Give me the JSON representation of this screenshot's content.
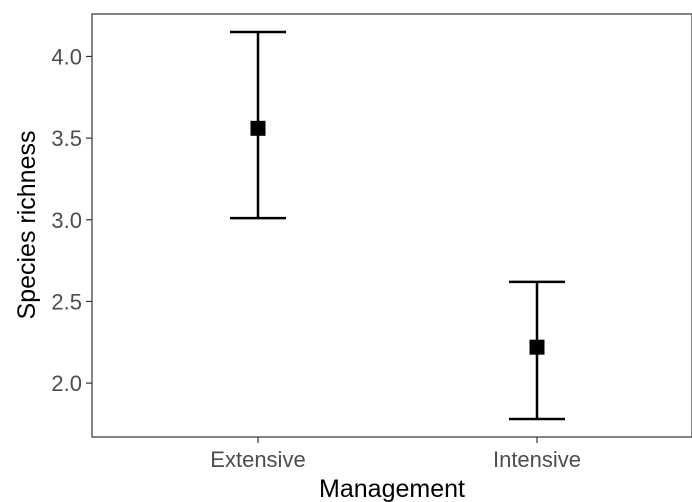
{
  "chart_data": {
    "type": "scatter",
    "xlabel": "Management",
    "ylabel": "Species richness",
    "categories": [
      "Extensive",
      "Intensive"
    ],
    "series": [
      {
        "points": [
          {
            "x": "Extensive",
            "y": 3.56,
            "lower": 3.01,
            "upper": 4.15
          },
          {
            "x": "Intensive",
            "y": 2.22,
            "lower": 1.78,
            "upper": 2.62
          }
        ]
      }
    ],
    "ylim": [
      1.67,
      4.26
    ],
    "yticks": [
      2.0,
      2.5,
      3.0,
      3.5,
      4.0
    ],
    "ytick_labels": [
      "2.0",
      "2.5",
      "3.0",
      "3.5",
      "4.0"
    ],
    "grid": false,
    "marker": "square",
    "error_bars": true
  }
}
